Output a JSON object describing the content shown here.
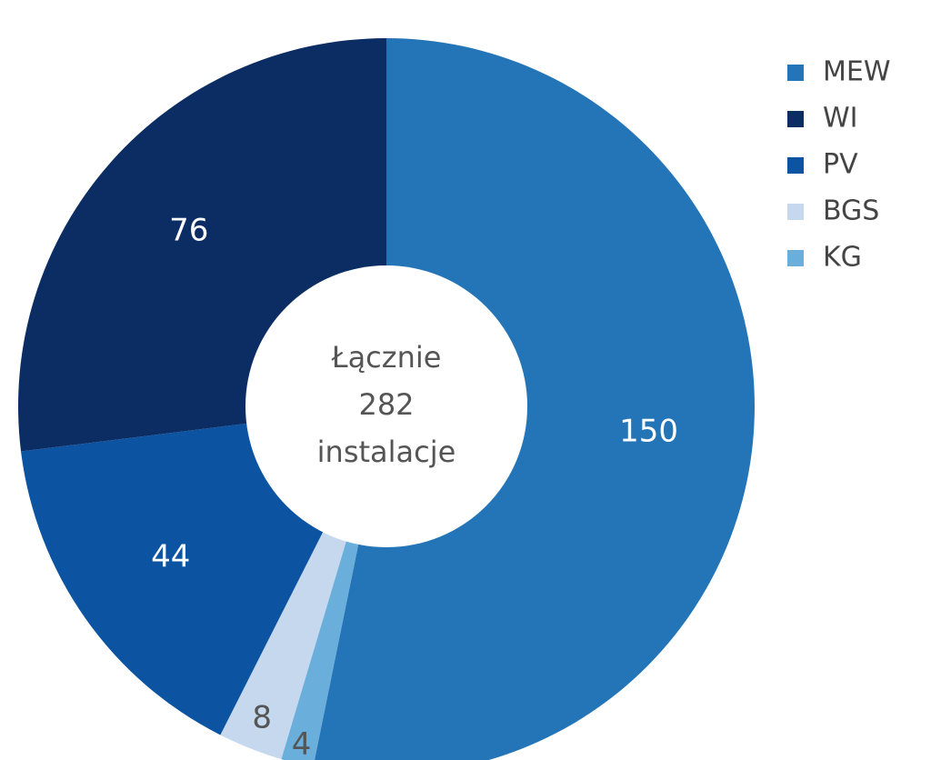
{
  "chart_data": {
    "type": "donut",
    "categories": [
      "MEW",
      "KG",
      "BGS",
      "PV",
      "WI"
    ],
    "values": [
      150,
      4,
      8,
      44,
      76
    ],
    "colors": [
      "#2475b8",
      "#6aaedc",
      "#c5d8ee",
      "#0c53a1",
      "#0b2d64"
    ],
    "label_colors": [
      "#ffffff",
      "#555555",
      "#555555",
      "#ffffff",
      "#ffffff"
    ],
    "legend": [
      "MEW",
      "WI",
      "PV",
      "BGS",
      "KG"
    ],
    "center_text": [
      "Łącznie",
      "282",
      "instalacje"
    ]
  }
}
